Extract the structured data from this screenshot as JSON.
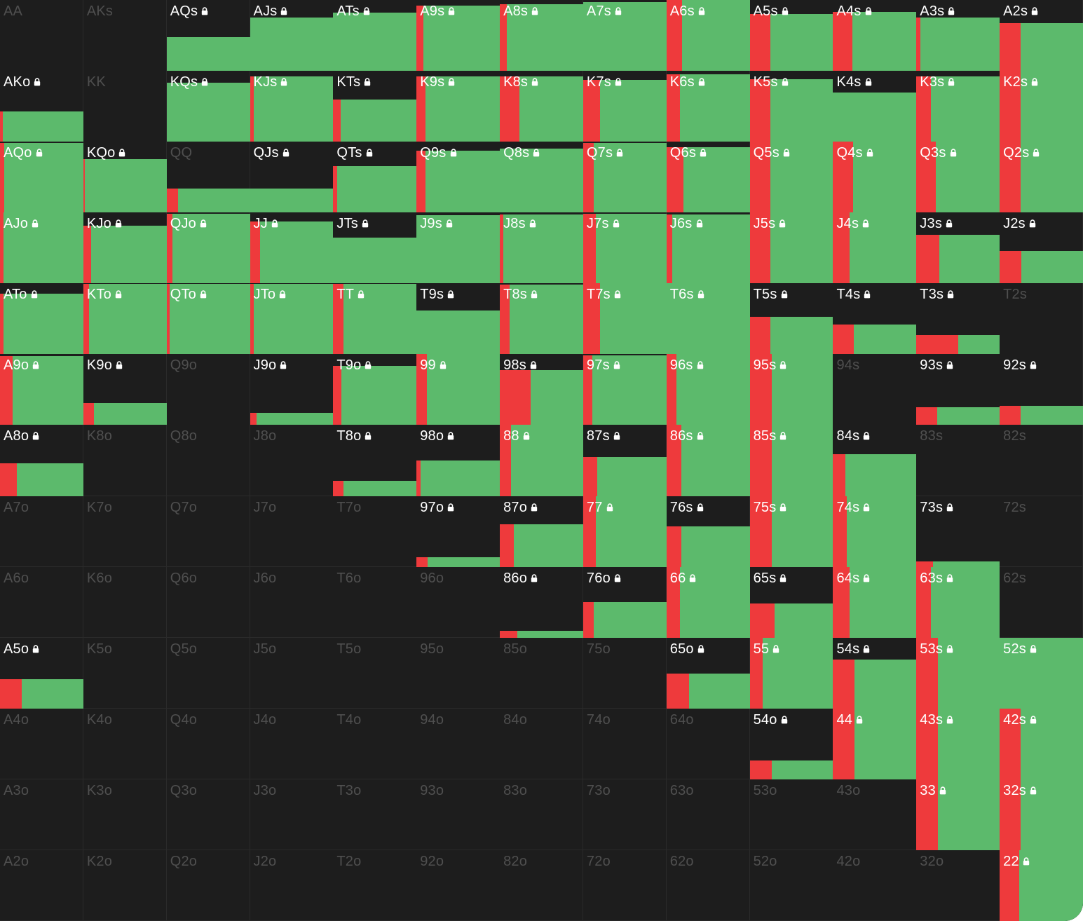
{
  "colors": {
    "background": "#1d1d1d",
    "raise": "#5cba6c",
    "fold": "#ee3a3c",
    "label_active": "#ffffff",
    "label_inactive": "#4f4f4f",
    "lock_icon": "lock-icon"
  },
  "rows": [
    [
      {
        "hand": "AA",
        "active": false
      },
      {
        "hand": "AKs",
        "active": false
      },
      {
        "hand": "AQs",
        "active": true,
        "fill": 0.48,
        "red": 0
      },
      {
        "hand": "AJs",
        "active": true,
        "fill": 0.75,
        "red": 0
      },
      {
        "hand": "ATs",
        "active": true,
        "fill": 0.82,
        "red": 0
      },
      {
        "hand": "A9s",
        "active": true,
        "fill": 0.92,
        "red": 0.08
      },
      {
        "hand": "A8s",
        "active": true,
        "fill": 0.94,
        "red": 0.08
      },
      {
        "hand": "A7s",
        "active": true,
        "fill": 0.97,
        "red": 0
      },
      {
        "hand": "A6s",
        "active": true,
        "fill": 1.0,
        "red": 0.19
      },
      {
        "hand": "A5s",
        "active": true,
        "fill": 0.8,
        "red": 0.25
      },
      {
        "hand": "A4s",
        "active": true,
        "fill": 0.83,
        "red": 0.23
      },
      {
        "hand": "A3s",
        "active": true,
        "fill": 0.75,
        "red": 0.05
      },
      {
        "hand": "A2s",
        "active": true,
        "fill": 0.68,
        "red": 0.25
      }
    ],
    [
      {
        "hand": "AKo",
        "active": true,
        "fill": 0.43,
        "red": 0.03
      },
      {
        "hand": "KK",
        "active": false
      },
      {
        "hand": "KQs",
        "active": true,
        "fill": 0.83,
        "red": 0
      },
      {
        "hand": "KJs",
        "active": true,
        "fill": 0.92,
        "red": 0.05
      },
      {
        "hand": "KTs",
        "active": true,
        "fill": 0.6,
        "red": 0.09
      },
      {
        "hand": "K9s",
        "active": true,
        "fill": 0.92,
        "red": 0.11
      },
      {
        "hand": "K8s",
        "active": true,
        "fill": 0.92,
        "red": 0.23
      },
      {
        "hand": "K7s",
        "active": true,
        "fill": 0.87,
        "red": 0.2
      },
      {
        "hand": "K6s",
        "active": true,
        "fill": 0.95,
        "red": 0.16
      },
      {
        "hand": "K5s",
        "active": true,
        "fill": 0.88,
        "red": 0.25
      },
      {
        "hand": "K4s",
        "active": true,
        "fill": 0.7,
        "red": 0
      },
      {
        "hand": "K3s",
        "active": true,
        "fill": 0.92,
        "red": 0.17
      },
      {
        "hand": "K2s",
        "active": true,
        "fill": 1.0,
        "red": 0.25
      }
    ],
    [
      {
        "hand": "AQo",
        "active": true,
        "fill": 0.98,
        "red": 0.05
      },
      {
        "hand": "KQo",
        "active": true,
        "fill": 0.76,
        "red": 0.02
      },
      {
        "hand": "QQ",
        "active": false,
        "fill": 0.34,
        "red": 0.14
      },
      {
        "hand": "QJs",
        "active": true,
        "fill": 0.34,
        "red": 0
      },
      {
        "hand": "QTs",
        "active": true,
        "fill": 0.66,
        "red": 0.05
      },
      {
        "hand": "Q9s",
        "active": true,
        "fill": 0.87,
        "red": 0.11
      },
      {
        "hand": "Q8s",
        "active": true,
        "fill": 0.9,
        "red": 0
      },
      {
        "hand": "Q7s",
        "active": true,
        "fill": 0.98,
        "red": 0.13
      },
      {
        "hand": "Q6s",
        "active": true,
        "fill": 0.92,
        "red": 0.2
      },
      {
        "hand": "Q5s",
        "active": true,
        "fill": 1.0,
        "red": 0.25
      },
      {
        "hand": "Q4s",
        "active": true,
        "fill": 1.0,
        "red": 0.24
      },
      {
        "hand": "Q3s",
        "active": true,
        "fill": 1.0,
        "red": 0.23
      },
      {
        "hand": "Q2s",
        "active": true,
        "fill": 1.0,
        "red": 0.25
      }
    ],
    [
      {
        "hand": "AJo",
        "active": true,
        "fill": 1.0,
        "red": 0.04
      },
      {
        "hand": "KJo",
        "active": true,
        "fill": 0.82,
        "red": 0.09
      },
      {
        "hand": "QJo",
        "active": true,
        "fill": 0.98,
        "red": 0.07
      },
      {
        "hand": "JJ",
        "active": true,
        "fill": 0.87,
        "red": 0.12
      },
      {
        "hand": "JTs",
        "active": true,
        "fill": 0.65,
        "red": 0
      },
      {
        "hand": "J9s",
        "active": true,
        "fill": 0.96,
        "red": 0
      },
      {
        "hand": "J8s",
        "active": true,
        "fill": 0.97,
        "red": 0.04
      },
      {
        "hand": "J7s",
        "active": true,
        "fill": 0.98,
        "red": 0.15
      },
      {
        "hand": "J6s",
        "active": true,
        "fill": 0.97,
        "red": 0.07
      },
      {
        "hand": "J5s",
        "active": true,
        "fill": 1.0,
        "red": 0.25
      },
      {
        "hand": "J4s",
        "active": true,
        "fill": 1.0,
        "red": 0.2
      },
      {
        "hand": "J3s",
        "active": true,
        "fill": 0.69,
        "red": 0.27
      },
      {
        "hand": "J2s",
        "active": true,
        "fill": 0.46,
        "red": 0.26
      }
    ],
    [
      {
        "hand": "ATo",
        "active": true,
        "fill": 0.86,
        "red": 0.04
      },
      {
        "hand": "KTo",
        "active": true,
        "fill": 0.99,
        "red": 0.07
      },
      {
        "hand": "QTo",
        "active": true,
        "fill": 0.99,
        "red": 0.04
      },
      {
        "hand": "JTo",
        "active": true,
        "fill": 0.99,
        "red": 0.05
      },
      {
        "hand": "TT",
        "active": true,
        "fill": 0.99,
        "red": 0.12
      },
      {
        "hand": "T9s",
        "active": true,
        "fill": 0.62,
        "red": 0
      },
      {
        "hand": "T8s",
        "active": true,
        "fill": 0.98,
        "red": 0.12
      },
      {
        "hand": "T7s",
        "active": true,
        "fill": 1.0,
        "red": 0.2
      },
      {
        "hand": "T6s",
        "active": true,
        "fill": 1.0,
        "red": 0
      },
      {
        "hand": "T5s",
        "active": true,
        "fill": 0.53,
        "red": 0.25
      },
      {
        "hand": "T4s",
        "active": true,
        "fill": 0.42,
        "red": 0.25
      },
      {
        "hand": "T3s",
        "active": true,
        "fill": 0.27,
        "red": 0.5
      },
      {
        "hand": "T2s",
        "active": false
      }
    ],
    [
      {
        "hand": "A9o",
        "active": true,
        "fill": 0.97,
        "red": 0.15
      },
      {
        "hand": "K9o",
        "active": true,
        "fill": 0.31,
        "red": 0.13
      },
      {
        "hand": "Q9o",
        "active": false
      },
      {
        "hand": "J9o",
        "active": true,
        "fill": 0.18,
        "red": 0.08
      },
      {
        "hand": "T9o",
        "active": true,
        "fill": 0.84,
        "red": 0.1
      },
      {
        "hand": "99",
        "active": true,
        "fill": 1.0,
        "red": 0.12
      },
      {
        "hand": "98s",
        "active": true,
        "fill": 0.78,
        "red": 0.37
      },
      {
        "hand": "97s",
        "active": true,
        "fill": 0.98,
        "red": 0.11
      },
      {
        "hand": "96s",
        "active": true,
        "fill": 1.0,
        "red": 0.12
      },
      {
        "hand": "95s",
        "active": true,
        "fill": 1.0,
        "red": 0.26
      },
      {
        "hand": "94s",
        "active": false
      },
      {
        "hand": "93s",
        "active": true,
        "fill": 0.26,
        "red": 0.25
      },
      {
        "hand": "92s",
        "active": true,
        "fill": 0.28,
        "red": 0.25
      }
    ],
    [
      {
        "hand": "A8o",
        "active": true,
        "fill": 0.46,
        "red": 0.2
      },
      {
        "hand": "K8o",
        "active": false
      },
      {
        "hand": "Q8o",
        "active": false
      },
      {
        "hand": "J8o",
        "active": false
      },
      {
        "hand": "T8o",
        "active": true,
        "fill": 0.22,
        "red": 0.12
      },
      {
        "hand": "98o",
        "active": true,
        "fill": 0.5,
        "red": 0.05
      },
      {
        "hand": "88",
        "active": true,
        "fill": 1.0,
        "red": 0.13
      },
      {
        "hand": "87s",
        "active": true,
        "fill": 0.55,
        "red": 0.17
      },
      {
        "hand": "86s",
        "active": true,
        "fill": 1.0,
        "red": 0.18
      },
      {
        "hand": "85s",
        "active": true,
        "fill": 1.0,
        "red": 0.26
      },
      {
        "hand": "84s",
        "active": true,
        "fill": 0.59,
        "red": 0.15
      },
      {
        "hand": "83s",
        "active": false
      },
      {
        "hand": "82s",
        "active": false
      }
    ],
    [
      {
        "hand": "A7o",
        "active": false
      },
      {
        "hand": "K7o",
        "active": false
      },
      {
        "hand": "Q7o",
        "active": false
      },
      {
        "hand": "J7o",
        "active": false
      },
      {
        "hand": "T7o",
        "active": false
      },
      {
        "hand": "97o",
        "active": true,
        "fill": 0.14,
        "red": 0.13
      },
      {
        "hand": "87o",
        "active": true,
        "fill": 0.6,
        "red": 0.17
      },
      {
        "hand": "77",
        "active": true,
        "fill": 1.0,
        "red": 0.15
      },
      {
        "hand": "76s",
        "active": true,
        "fill": 0.57,
        "red": 0.18
      },
      {
        "hand": "75s",
        "active": true,
        "fill": 1.0,
        "red": 0.26
      },
      {
        "hand": "74s",
        "active": true,
        "fill": 1.0,
        "red": 0.16
      },
      {
        "hand": "73s",
        "active": true,
        "fill": 0.08,
        "red": 0.2
      },
      {
        "hand": "72s",
        "active": false
      }
    ],
    [
      {
        "hand": "A6o",
        "active": false
      },
      {
        "hand": "K6o",
        "active": false
      },
      {
        "hand": "Q6o",
        "active": false
      },
      {
        "hand": "J6o",
        "active": false
      },
      {
        "hand": "T6o",
        "active": false
      },
      {
        "hand": "96o",
        "active": false
      },
      {
        "hand": "86o",
        "active": true,
        "fill": 0.1,
        "red": 0.21
      },
      {
        "hand": "76o",
        "active": true,
        "fill": 0.5,
        "red": 0.13
      },
      {
        "hand": "66",
        "active": true,
        "fill": 1.0,
        "red": 0.16
      },
      {
        "hand": "65s",
        "active": true,
        "fill": 0.48,
        "red": 0.3
      },
      {
        "hand": "64s",
        "active": true,
        "fill": 1.0,
        "red": 0.2
      },
      {
        "hand": "63s",
        "active": true,
        "fill": 1.0,
        "red": 0.17
      },
      {
        "hand": "62s",
        "active": false
      }
    ],
    [
      {
        "hand": "A5o",
        "active": true,
        "fill": 0.42,
        "red": 0.26
      },
      {
        "hand": "K5o",
        "active": false
      },
      {
        "hand": "Q5o",
        "active": false
      },
      {
        "hand": "J5o",
        "active": false
      },
      {
        "hand": "T5o",
        "active": false
      },
      {
        "hand": "95o",
        "active": false
      },
      {
        "hand": "85o",
        "active": false
      },
      {
        "hand": "75o",
        "active": false
      },
      {
        "hand": "65o",
        "active": true,
        "fill": 0.49,
        "red": 0.27
      },
      {
        "hand": "55",
        "active": true,
        "fill": 1.0,
        "red": 0.15
      },
      {
        "hand": "54s",
        "active": true,
        "fill": 0.69,
        "red": 0.26
      },
      {
        "hand": "53s",
        "active": true,
        "fill": 1.0,
        "red": 0.26
      },
      {
        "hand": "52s",
        "active": true,
        "fill": 1.0,
        "red": 0
      }
    ],
    [
      {
        "hand": "A4o",
        "active": false
      },
      {
        "hand": "K4o",
        "active": false
      },
      {
        "hand": "Q4o",
        "active": false
      },
      {
        "hand": "J4o",
        "active": false
      },
      {
        "hand": "T4o",
        "active": false
      },
      {
        "hand": "94o",
        "active": false
      },
      {
        "hand": "84o",
        "active": false
      },
      {
        "hand": "74o",
        "active": false
      },
      {
        "hand": "64o",
        "active": false
      },
      {
        "hand": "54o",
        "active": true,
        "fill": 0.27,
        "red": 0.26
      },
      {
        "hand": "44",
        "active": true,
        "fill": 1.0,
        "red": 0.26
      },
      {
        "hand": "43s",
        "active": true,
        "fill": 1.0,
        "red": 0.26
      },
      {
        "hand": "42s",
        "active": true,
        "fill": 1.0,
        "red": 0.25
      }
    ],
    [
      {
        "hand": "A3o",
        "active": false
      },
      {
        "hand": "K3o",
        "active": false
      },
      {
        "hand": "Q3o",
        "active": false
      },
      {
        "hand": "J3o",
        "active": false
      },
      {
        "hand": "T3o",
        "active": false
      },
      {
        "hand": "93o",
        "active": false
      },
      {
        "hand": "83o",
        "active": false
      },
      {
        "hand": "73o",
        "active": false
      },
      {
        "hand": "63o",
        "active": false
      },
      {
        "hand": "53o",
        "active": false
      },
      {
        "hand": "43o",
        "active": false
      },
      {
        "hand": "33",
        "active": true,
        "fill": 1.0,
        "red": 0.26
      },
      {
        "hand": "32s",
        "active": true,
        "fill": 1.0,
        "red": 0.25
      }
    ],
    [
      {
        "hand": "A2o",
        "active": false
      },
      {
        "hand": "K2o",
        "active": false
      },
      {
        "hand": "Q2o",
        "active": false
      },
      {
        "hand": "J2o",
        "active": false
      },
      {
        "hand": "T2o",
        "active": false
      },
      {
        "hand": "92o",
        "active": false
      },
      {
        "hand": "82o",
        "active": false
      },
      {
        "hand": "72o",
        "active": false
      },
      {
        "hand": "62o",
        "active": false
      },
      {
        "hand": "52o",
        "active": false
      },
      {
        "hand": "42o",
        "active": false
      },
      {
        "hand": "32o",
        "active": false
      },
      {
        "hand": "22",
        "active": true,
        "fill": 1.0,
        "red": 0.23
      }
    ]
  ]
}
